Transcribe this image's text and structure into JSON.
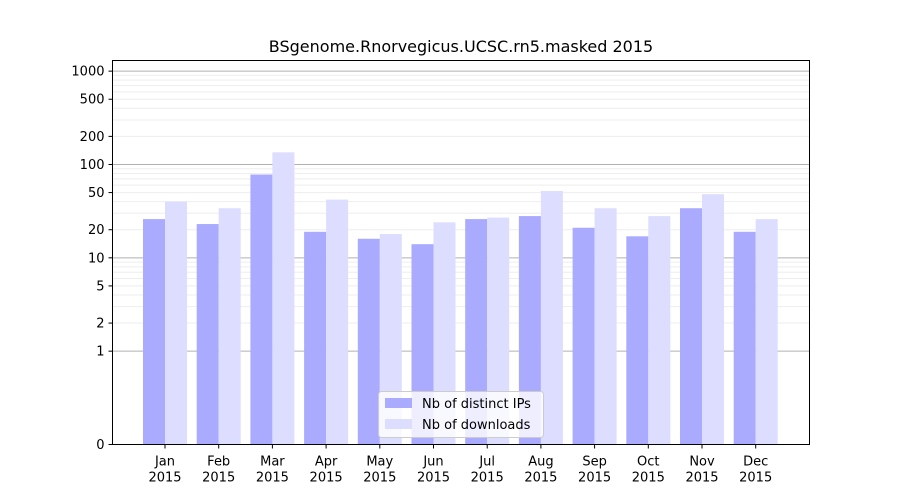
{
  "chart_data": {
    "type": "bar",
    "title": "BSgenome.Rnorvegicus.UCSC.rn5.masked 2015",
    "xlabel": "",
    "ylabel": "",
    "y_scale": "symlog",
    "ylim": [
      0,
      1300
    ],
    "y_ticks": [
      0,
      1,
      2,
      5,
      10,
      20,
      50,
      100,
      200,
      500,
      1000
    ],
    "grid": "horizontal",
    "legend_position": "bottom-center",
    "categories": [
      [
        "Jan",
        "2015"
      ],
      [
        "Feb",
        "2015"
      ],
      [
        "Mar",
        "2015"
      ],
      [
        "Apr",
        "2015"
      ],
      [
        "May",
        "2015"
      ],
      [
        "Jun",
        "2015"
      ],
      [
        "Jul",
        "2015"
      ],
      [
        "Aug",
        "2015"
      ],
      [
        "Sep",
        "2015"
      ],
      [
        "Oct",
        "2015"
      ],
      [
        "Nov",
        "2015"
      ],
      [
        "Dec",
        "2015"
      ]
    ],
    "series": [
      {
        "name": "Nb of distinct IPs",
        "color": "#aaaaff",
        "values": [
          26,
          23,
          78,
          19,
          16,
          14,
          26,
          28,
          21,
          17,
          34,
          19
        ]
      },
      {
        "name": "Nb of downloads",
        "color": "#ddddff",
        "values": [
          40,
          34,
          135,
          42,
          18,
          24,
          27,
          52,
          34,
          28,
          48,
          26
        ]
      }
    ]
  }
}
